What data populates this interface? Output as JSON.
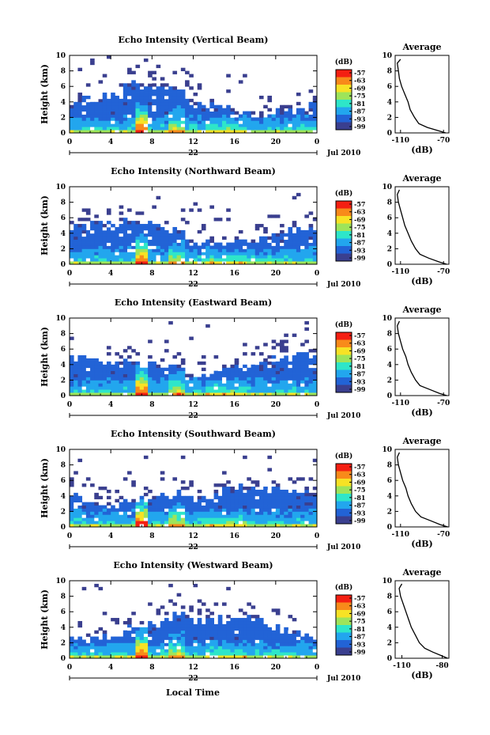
{
  "figure": {
    "xlabel": "Local Time",
    "date_label": "Jul 2010",
    "day_label": "22",
    "colorbar_unit": "(dB)",
    "colorbar_ticks": [
      "-57",
      "-63",
      "-69",
      "-75",
      "-81",
      "-87",
      "-93",
      "-99"
    ],
    "colorbar_colors": [
      "#f41f12",
      "#f88a1a",
      "#f7e225",
      "#9ee45a",
      "#2ee6c9",
      "#22a6ee",
      "#2263d6",
      "#3a3f8f"
    ],
    "panel_colors": {
      "background": "#3b3f90",
      "white": "#ffffff"
    }
  },
  "chart_data": [
    {
      "type": "heatmap",
      "title": "Echo Intensity (Vertical Beam)",
      "ylabel": "Height (km)",
      "x_ticks": [
        "0",
        "4",
        "8",
        "12",
        "16",
        "20",
        "0"
      ],
      "y_ticks": [
        "0",
        "2",
        "4",
        "6",
        "8",
        "10"
      ],
      "xlim": [
        0,
        24
      ],
      "ylim": [
        0,
        10
      ],
      "zlim": [
        -99,
        -57
      ],
      "profile": {
        "title": "Average",
        "xlabel": "(dB)",
        "x_ticks": [
          "-110",
          "-70"
        ],
        "y_ticks": [
          "0",
          "2",
          "4",
          "6",
          "8",
          "10"
        ],
        "xlim": [
          -115,
          -65
        ],
        "values": [
          [
            -68,
            0
          ],
          [
            -75,
            0.3
          ],
          [
            -85,
            0.7
          ],
          [
            -93,
            1.2
          ],
          [
            -97,
            2.0
          ],
          [
            -101,
            3.0
          ],
          [
            -103,
            4.0
          ],
          [
            -106,
            5.0
          ],
          [
            -109,
            6.0
          ],
          [
            -111,
            7.0
          ],
          [
            -112,
            8.0
          ],
          [
            -113,
            9.0
          ],
          [
            -110,
            9.5
          ]
        ]
      }
    },
    {
      "type": "heatmap",
      "title": "Echo Intensity (Northward Beam)",
      "ylabel": "Height (km)",
      "x_ticks": [
        "0",
        "4",
        "8",
        "12",
        "16",
        "20",
        "0"
      ],
      "y_ticks": [
        "0",
        "2",
        "4",
        "6",
        "8",
        "10"
      ],
      "xlim": [
        0,
        24
      ],
      "ylim": [
        0,
        10
      ],
      "zlim": [
        -99,
        -57
      ],
      "profile": {
        "title": "Average",
        "xlabel": "(dB)",
        "x_ticks": [
          "-110",
          "-70"
        ],
        "y_ticks": [
          "0",
          "2",
          "4",
          "6",
          "8",
          "10"
        ],
        "xlim": [
          -115,
          -65
        ],
        "values": [
          [
            -67,
            0
          ],
          [
            -74,
            0.3
          ],
          [
            -84,
            0.8
          ],
          [
            -92,
            1.3
          ],
          [
            -96,
            2.0
          ],
          [
            -100,
            3.0
          ],
          [
            -103,
            4.0
          ],
          [
            -106,
            5.0
          ],
          [
            -108,
            6.0
          ],
          [
            -110,
            7.0
          ],
          [
            -112,
            8.0
          ],
          [
            -113,
            9.0
          ],
          [
            -111,
            9.6
          ]
        ]
      }
    },
    {
      "type": "heatmap",
      "title": "Echo Intensity (Eastward Beam)",
      "ylabel": "Height (km)",
      "x_ticks": [
        "0",
        "4",
        "8",
        "12",
        "16",
        "20",
        "0"
      ],
      "y_ticks": [
        "0",
        "2",
        "4",
        "6",
        "8",
        "10"
      ],
      "xlim": [
        0,
        24
      ],
      "ylim": [
        0,
        10
      ],
      "zlim": [
        -99,
        -57
      ],
      "profile": {
        "title": "Average",
        "xlabel": "(dB)",
        "x_ticks": [
          "-110",
          "-70"
        ],
        "y_ticks": [
          "0",
          "2",
          "4",
          "6",
          "8",
          "10"
        ],
        "xlim": [
          -115,
          -65
        ],
        "values": [
          [
            -67,
            0
          ],
          [
            -74,
            0.3
          ],
          [
            -83,
            0.8
          ],
          [
            -92,
            1.3
          ],
          [
            -96,
            2.0
          ],
          [
            -100,
            3.0
          ],
          [
            -103,
            4.0
          ],
          [
            -105,
            5.0
          ],
          [
            -108,
            6.0
          ],
          [
            -110,
            7.0
          ],
          [
            -112,
            8.0
          ],
          [
            -113,
            9.0
          ],
          [
            -111,
            9.6
          ]
        ]
      }
    },
    {
      "type": "heatmap",
      "title": "Echo Intensity (Southward Beam)",
      "ylabel": "Height (km)",
      "x_ticks": [
        "0",
        "4",
        "8",
        "12",
        "16",
        "20",
        "0"
      ],
      "y_ticks": [
        "0",
        "2",
        "4",
        "6",
        "8",
        "10"
      ],
      "xlim": [
        0,
        24
      ],
      "ylim": [
        0,
        10
      ],
      "zlim": [
        -99,
        -57
      ],
      "profile": {
        "title": "Average",
        "xlabel": "(dB)",
        "x_ticks": [
          "-110",
          "-70"
        ],
        "y_ticks": [
          "0",
          "2",
          "4",
          "6",
          "8",
          "10"
        ],
        "xlim": [
          -115,
          -65
        ],
        "values": [
          [
            -66,
            0
          ],
          [
            -73,
            0.3
          ],
          [
            -82,
            0.8
          ],
          [
            -91,
            1.3
          ],
          [
            -96,
            2.0
          ],
          [
            -100,
            3.0
          ],
          [
            -103,
            4.0
          ],
          [
            -105,
            5.0
          ],
          [
            -108,
            6.0
          ],
          [
            -110,
            7.0
          ],
          [
            -112,
            8.0
          ],
          [
            -113,
            9.0
          ],
          [
            -111,
            9.6
          ]
        ]
      }
    },
    {
      "type": "heatmap",
      "title": "Echo Intensity (Westward Beam)",
      "ylabel": "Height (km)",
      "x_ticks": [
        "0",
        "4",
        "8",
        "12",
        "16",
        "20",
        "0"
      ],
      "y_ticks": [
        "0",
        "2",
        "4",
        "6",
        "8",
        "10"
      ],
      "xlim": [
        0,
        24
      ],
      "ylim": [
        0,
        10
      ],
      "zlim": [
        -99,
        -57
      ],
      "profile": {
        "title": "Average",
        "xlabel": "(dB)",
        "x_ticks": [
          "-110",
          "-80"
        ],
        "y_ticks": [
          "0",
          "2",
          "4",
          "6",
          "8",
          "10"
        ],
        "xlim": [
          -115,
          -75
        ],
        "values": [
          [
            -76,
            0
          ],
          [
            -80,
            0.3
          ],
          [
            -87,
            0.8
          ],
          [
            -93,
            1.3
          ],
          [
            -97,
            2.0
          ],
          [
            -100,
            3.0
          ],
          [
            -103,
            4.0
          ],
          [
            -105,
            5.0
          ],
          [
            -107,
            6.0
          ],
          [
            -109,
            7.0
          ],
          [
            -111,
            8.0
          ],
          [
            -112,
            9.0
          ],
          [
            -110,
            9.6
          ]
        ]
      }
    }
  ]
}
